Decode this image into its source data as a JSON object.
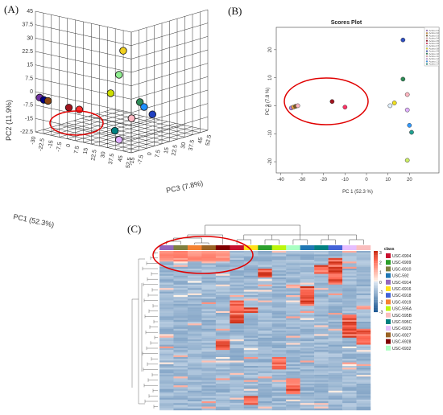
{
  "panels": {
    "a": "(A)",
    "b": "(B)",
    "c": "(C)"
  },
  "chart_data": [
    {
      "type": "scatter",
      "panel": "A",
      "view": "3d",
      "xlabel": "PC1 (52.3%)",
      "ylabel": "PC2 (11.9%)",
      "zlabel": "PC3 (7.8%)",
      "y_ticks": [
        "45",
        "37.5",
        "30",
        "22.5",
        "15",
        "7.5",
        "0",
        "-7.5",
        "-15",
        "-22.5"
      ],
      "x_ticks": [
        "-30",
        "-22.5",
        "-15",
        "-7.5",
        "0",
        "7.5",
        "15",
        "22.5",
        "30",
        "37.5",
        "45",
        "52.5"
      ],
      "z_ticks": [
        "-15",
        "-7.5",
        "0",
        "7.5",
        "15",
        "22.5",
        "30",
        "37.5",
        "45",
        "52.5"
      ],
      "points": [
        {
          "pc1": -28,
          "pc2": 0,
          "pc3": 2,
          "color": "#7030a0"
        },
        {
          "pc1": -26,
          "pc2": -1,
          "pc3": 1,
          "color": "#000080"
        },
        {
          "pc1": -24,
          "pc2": -1,
          "pc3": 3,
          "color": "#8b4513"
        },
        {
          "pc1": -14,
          "pc2": -3,
          "pc3": 1,
          "color": "#a0141e"
        },
        {
          "pc1": -9,
          "pc2": -3,
          "pc3": 2,
          "color": "#ff3030"
        },
        {
          "pc1": 12,
          "pc2": 37,
          "pc3": 4,
          "color": "#f0d020"
        },
        {
          "pc1": 10,
          "pc2": 22,
          "pc3": 2,
          "color": "#90ee90"
        },
        {
          "pc1": 6,
          "pc2": 10,
          "pc3": 1,
          "color": "#ccdd00"
        },
        {
          "pc1": 20,
          "pc2": 6,
          "pc3": 5,
          "color": "#2e8b57"
        },
        {
          "pc1": 22,
          "pc2": 3,
          "pc3": 10,
          "color": "#1e90ff"
        },
        {
          "pc1": 16,
          "pc2": -3,
          "pc3": 3,
          "color": "#ffb6c1"
        },
        {
          "pc1": 26,
          "pc2": -2,
          "pc3": 14,
          "color": "#2040c0"
        },
        {
          "pc1": 8,
          "pc2": -12,
          "pc3": 2,
          "color": "#008080"
        },
        {
          "pc1": 10,
          "pc2": -17,
          "pc3": 2,
          "color": "#e0b0ff"
        }
      ]
    },
    {
      "type": "scatter",
      "panel": "B",
      "title": "Scores Plot",
      "xlabel": "PC 1 (52.3 %)",
      "ylabel": "PC 3 (7.8 %)",
      "x_ticks": [
        -40,
        -30,
        -20,
        -10,
        0,
        10,
        20
      ],
      "y_ticks": [
        -20,
        -10,
        0,
        10,
        20
      ],
      "xlim": [
        -42,
        27
      ],
      "ylim": [
        -24,
        28
      ],
      "legend": [
        "Actino 01",
        "Actino 02",
        "Actino 03",
        "Actino 04",
        "Actino 05",
        "Actino 06",
        "Actino 07",
        "Actino 08",
        "Actino 09",
        "Actino 10",
        "Actino 11",
        "Actino 12",
        "Actino 13",
        "Actino 14"
      ],
      "points": [
        {
          "x": -35,
          "y": -0.8,
          "color": "#b080e0"
        },
        {
          "x": -34,
          "y": -0.5,
          "color": "#e8a040"
        },
        {
          "x": -33,
          "y": -0.2,
          "color": "#7a5a20"
        },
        {
          "x": -32,
          "y": 0,
          "color": "#ffb6c1"
        },
        {
          "x": -16,
          "y": 1.5,
          "color": "#a0141e"
        },
        {
          "x": -10,
          "y": -0.5,
          "color": "#ff3366"
        },
        {
          "x": 11,
          "y": 0,
          "color": "#e0f0ff"
        },
        {
          "x": 13,
          "y": 1,
          "color": "#f0e020"
        },
        {
          "x": 17,
          "y": 23.5,
          "color": "#3050c0"
        },
        {
          "x": 17,
          "y": 9.5,
          "color": "#2e8b57"
        },
        {
          "x": 19,
          "y": 4,
          "color": "#ffb6c1"
        },
        {
          "x": 19,
          "y": -1.5,
          "color": "#e0b0ff"
        },
        {
          "x": 20,
          "y": -7,
          "color": "#3399ff"
        },
        {
          "x": 21,
          "y": -9.5,
          "color": "#20a090"
        },
        {
          "x": 19,
          "y": -19.5,
          "color": "#ccee66"
        }
      ]
    },
    {
      "type": "heatmap",
      "panel": "C",
      "legend_title": "class",
      "scale_ticks": [
        "3",
        "2",
        "1",
        "0",
        "-1",
        "-2",
        "-3"
      ],
      "classes": [
        {
          "name": "USC-6904",
          "color": "#c8102e"
        },
        {
          "name": "USC-6909",
          "color": "#2ca02c"
        },
        {
          "name": "USC-6910",
          "color": "#7f7f3f"
        },
        {
          "name": "USC-592",
          "color": "#1f77b4"
        },
        {
          "name": "USC-6914",
          "color": "#9467bd"
        },
        {
          "name": "USC-6916",
          "color": "#ffe119"
        },
        {
          "name": "USC-6918",
          "color": "#4363d8"
        },
        {
          "name": "USC-6919",
          "color": "#f58231"
        },
        {
          "name": "USC-595A",
          "color": "#bcf60c"
        },
        {
          "name": "USC-595B",
          "color": "#fabebe"
        },
        {
          "name": "USC-595C",
          "color": "#008080"
        },
        {
          "name": "USC-6923",
          "color": "#e6beff"
        },
        {
          "name": "USC-6927",
          "color": "#9a6324"
        },
        {
          "name": "USC-6928",
          "color": "#800000"
        },
        {
          "name": "USC-6932",
          "color": "#aaffc3"
        }
      ]
    }
  ],
  "annotation_color": "#e00000"
}
